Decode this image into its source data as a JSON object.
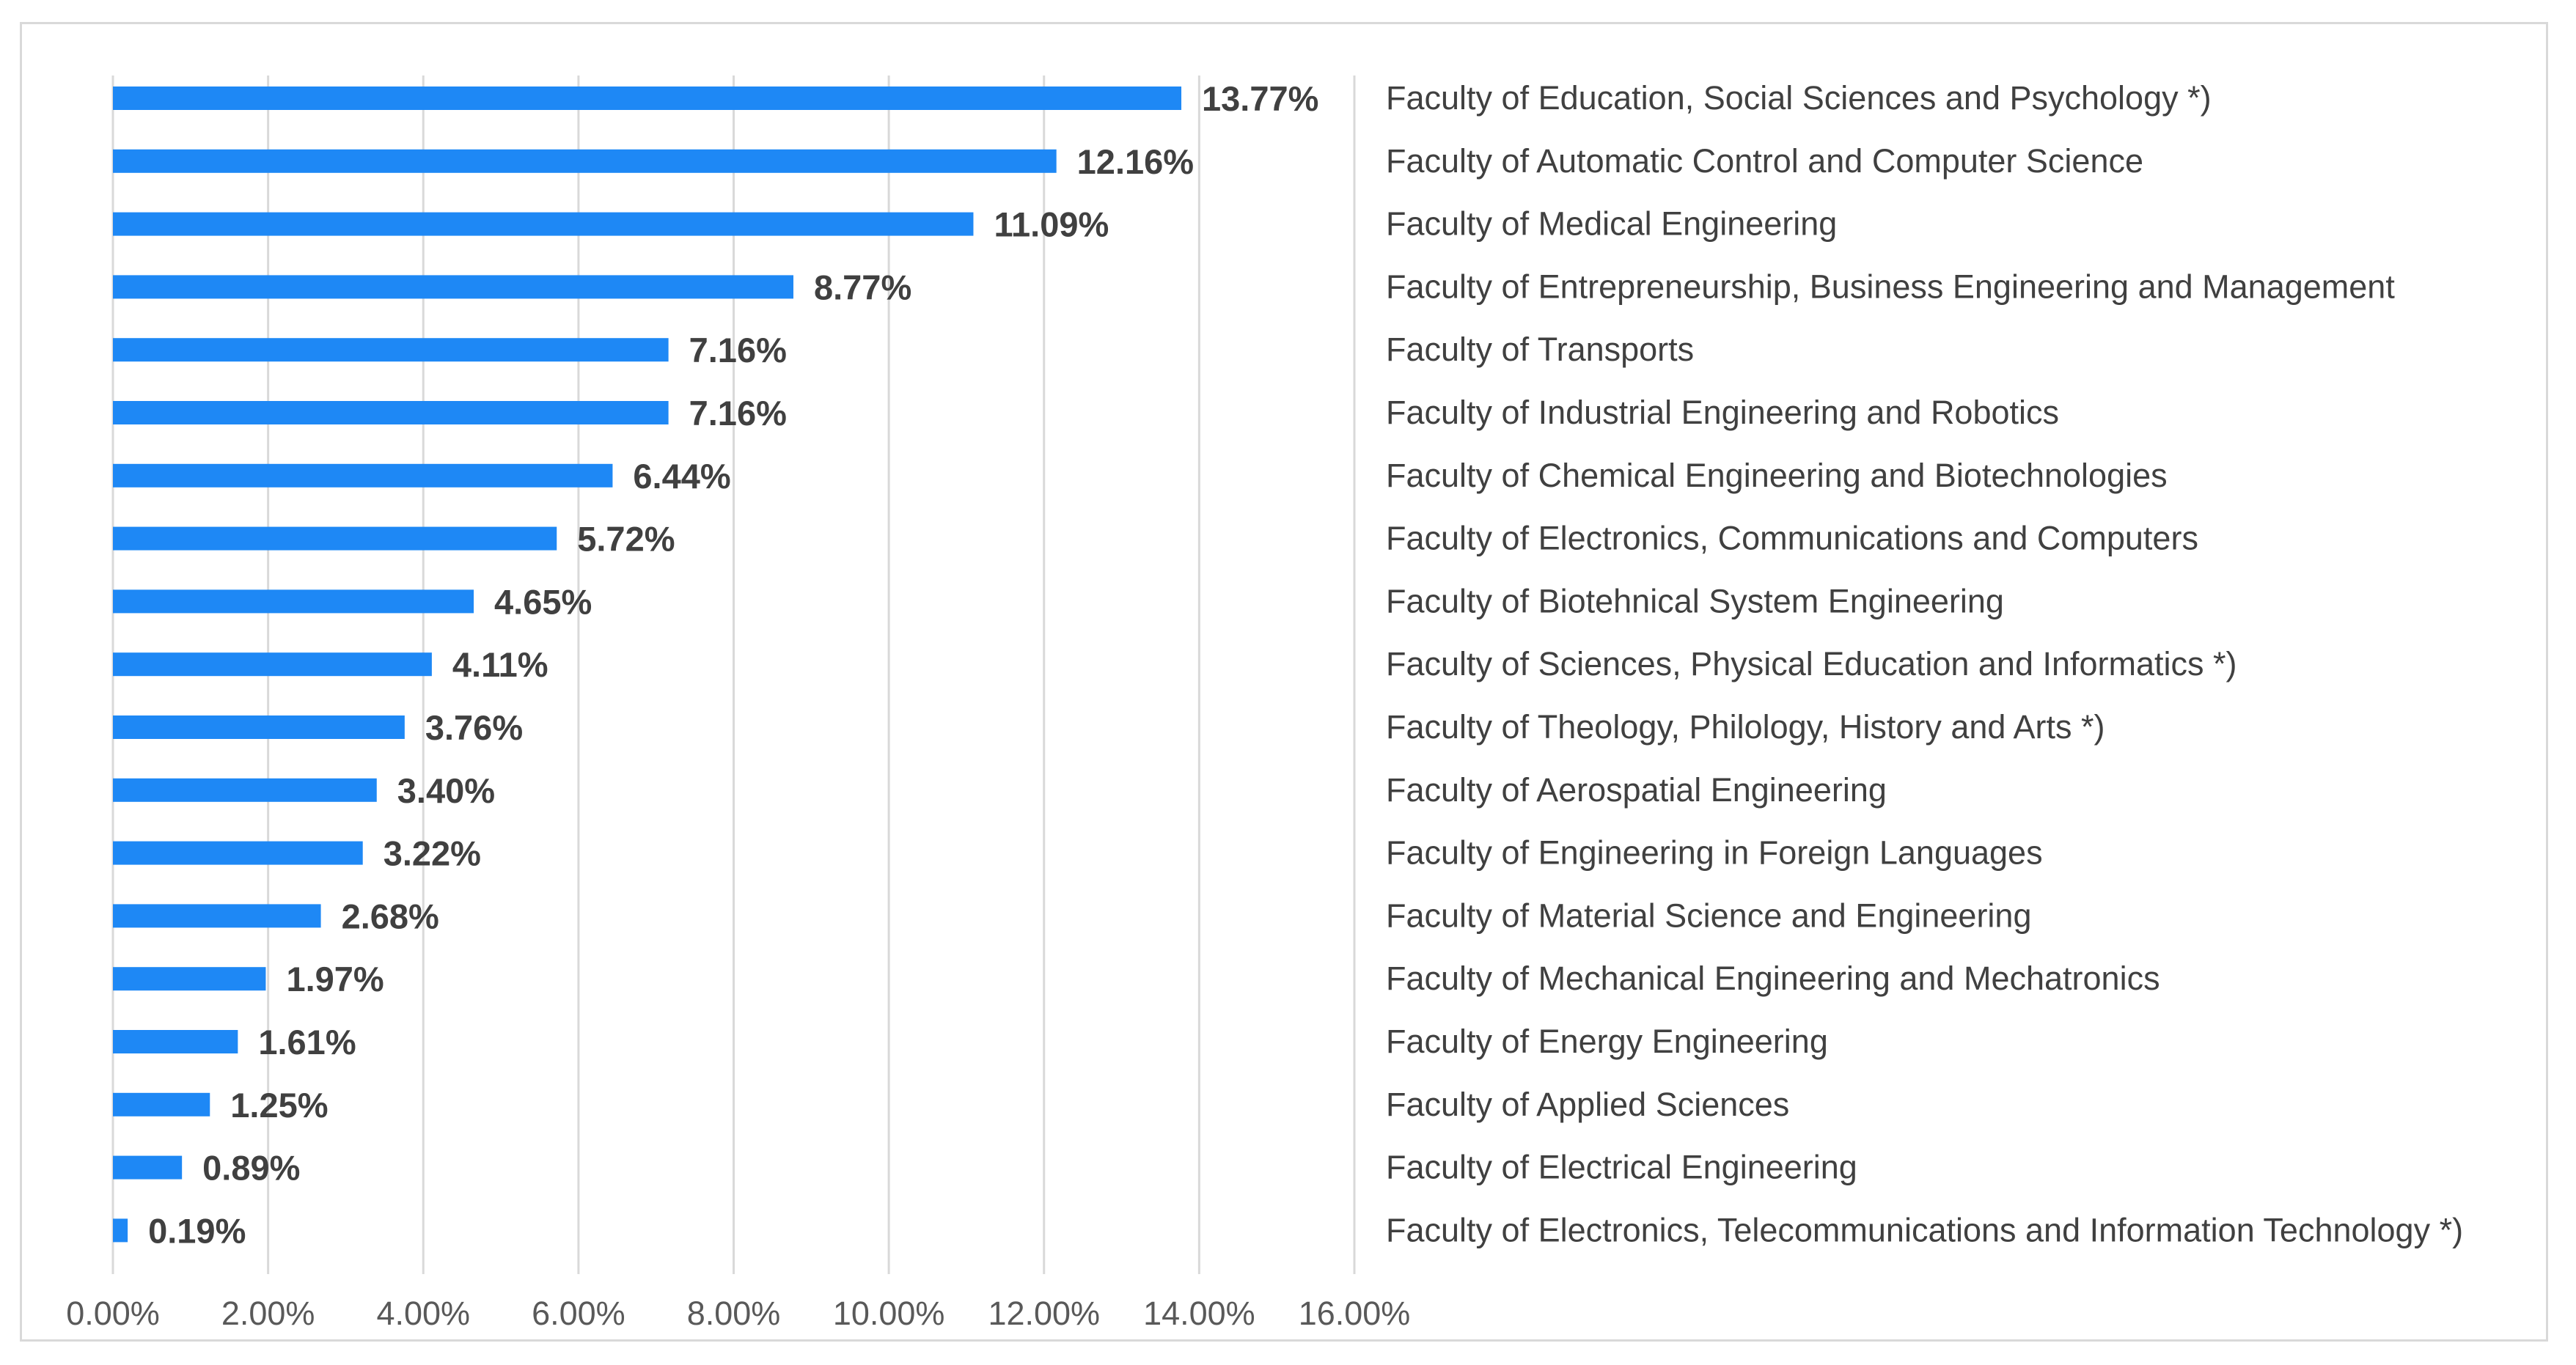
{
  "chart_data": {
    "type": "bar",
    "orientation": "horizontal",
    "title": "",
    "xlabel": "",
    "ylabel": "",
    "xlim": [
      0,
      16
    ],
    "grid": true,
    "bar_color": "#1e88f5",
    "categories": [
      "Faculty of Education, Social Sciences and Psychology *)",
      "Faculty of Automatic Control and Computer Science",
      "Faculty of Medical Engineering",
      "Faculty of Entrepreneurship, Business Engineering and Management",
      "Faculty of Transports",
      "Faculty of Industrial Engineering and Robotics",
      "Faculty of Chemical Engineering and Biotechnologies",
      "Faculty of Electronics, Communications and Computers",
      "Faculty of Biotehnical System Engineering",
      "Faculty of Sciences, Physical Education and Informatics *)",
      "Faculty of Theology, Philology, History and Arts *)",
      "Faculty of Aerospatial Engineering",
      "Faculty of Engineering in Foreign Languages",
      "Faculty of Material Science and Engineering",
      "Faculty of Mechanical Engineering and Mechatronics",
      "Faculty of Energy Engineering",
      "Faculty of Applied Sciences",
      "Faculty of Electrical Engineering",
      "Faculty of Electronics, Telecommunications and Information Technology *)"
    ],
    "values": [
      13.77,
      12.16,
      11.09,
      8.77,
      7.16,
      7.16,
      6.44,
      5.72,
      4.65,
      4.11,
      3.76,
      3.4,
      3.22,
      2.68,
      1.97,
      1.61,
      1.25,
      0.89,
      0.19
    ],
    "value_labels": [
      "13.77%",
      "12.16%",
      "11.09%",
      "8.77%",
      "7.16%",
      "7.16%",
      "6.44%",
      "5.72%",
      "4.65%",
      "4.11%",
      "3.76%",
      "3.40%",
      "3.22%",
      "2.68%",
      "1.97%",
      "1.61%",
      "1.25%",
      "0.89%",
      "0.19%"
    ],
    "x_ticks": [
      0,
      2,
      4,
      6,
      8,
      10,
      12,
      14,
      16
    ],
    "x_tick_labels": [
      "0.00%",
      "2.00%",
      "4.00%",
      "6.00%",
      "8.00%",
      "10.00%",
      "12.00%",
      "14.00%",
      "16.00%"
    ]
  }
}
